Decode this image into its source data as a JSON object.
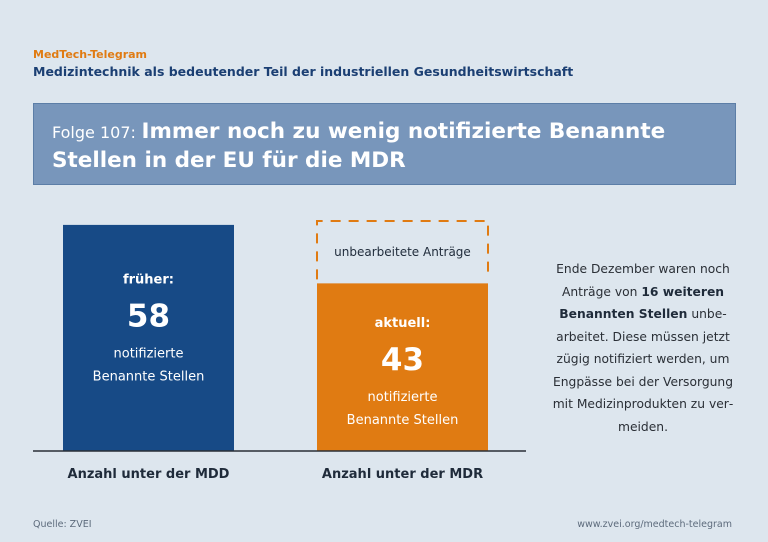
{
  "header": {
    "brand": "MedTech-Telegram",
    "subtitle": "Medizintechnik als bedeutender Teil der industriellen Gesundheitswirtschaft"
  },
  "title": {
    "folge": "Folge 107:",
    "text": "Immer noch zu wenig notifizierte Benannte Stellen in der EU für die MDR"
  },
  "chart_data": {
    "type": "bar",
    "categories": [
      "Anzahl unter der MDD",
      "Anzahl unter der MDR"
    ],
    "values": [
      58,
      43
    ],
    "bar_labels": [
      {
        "period": "früher:",
        "value": "58",
        "line1": "notifizierte",
        "line2": "Benannte Stellen"
      },
      {
        "period": "aktuell:",
        "value": "43",
        "line1": "notifizierte",
        "line2": "Benannte Stellen"
      }
    ],
    "pending": {
      "label": "unbearbeitete Anträge",
      "value": 16
    },
    "ylim": [
      0,
      59
    ],
    "colors": {
      "mdd": "#174a86",
      "mdr": "#e07b12",
      "pending_border": "#e07b12",
      "baseline": "#2a2f36"
    }
  },
  "side_note": {
    "pre": "Ende Dezember waren noch Anträge von ",
    "bold": "16 weiteren Benannten Stellen",
    "post": " unbe­arbeitet. Diese müssen jetzt zügig notifiziert werden, um Engpässe bei der Versorgung mit Medizinprodukten zu ver­meiden."
  },
  "footer": {
    "source": "Quelle: ZVEI",
    "url": "www.zvei.org/medtech-telegram"
  }
}
